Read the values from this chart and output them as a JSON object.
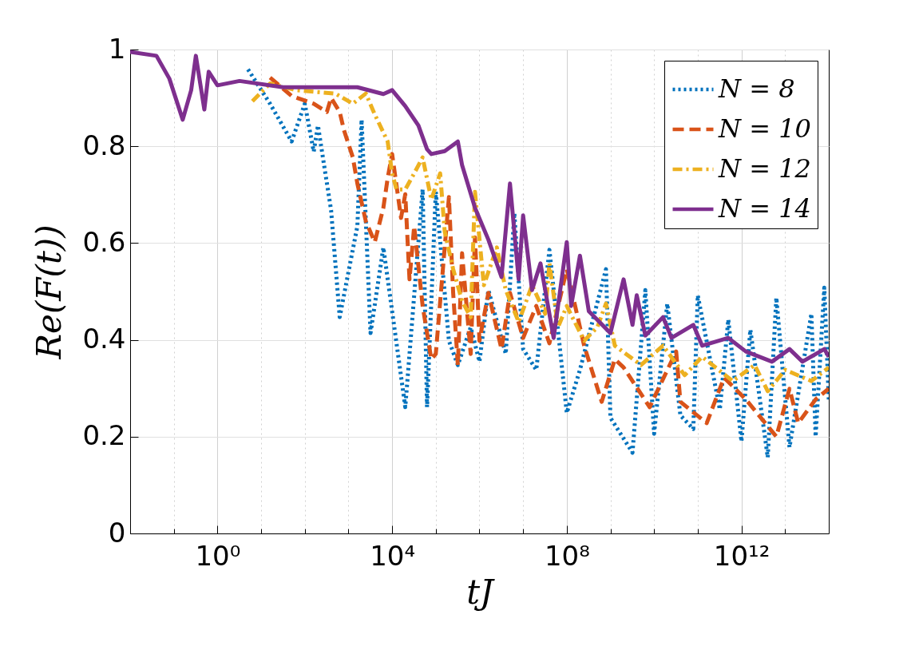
{
  "chart_data": {
    "type": "line",
    "xlabel": "tJ",
    "ylabel": "Re(F(t))",
    "log": "x",
    "grid": true,
    "legend": "top right",
    "xlim": [
      0.01,
      100000000000000.0
    ],
    "ylim": [
      0,
      1
    ],
    "xticks": [
      {
        "value": 0.01,
        "label": null
      },
      {
        "value": 0.1,
        "label": null
      },
      {
        "value": 1,
        "label": "10⁰"
      },
      {
        "value": 10,
        "label": null
      },
      {
        "value": 100,
        "label": null
      },
      {
        "value": 1000,
        "label": null
      },
      {
        "value": 10000,
        "label": "10⁴"
      },
      {
        "value": 100000.0,
        "label": null
      },
      {
        "value": 1000000.0,
        "label": null
      },
      {
        "value": 10000000.0,
        "label": null
      },
      {
        "value": 100000000.0,
        "label": "10⁸"
      },
      {
        "value": 1000000000.0,
        "label": null
      },
      {
        "value": 10000000000.0,
        "label": null
      },
      {
        "value": 100000000000.0,
        "label": null
      },
      {
        "value": 1000000000000.0,
        "label": "10¹²"
      },
      {
        "value": 10000000000000.0,
        "label": null
      }
    ],
    "yticks": [
      0,
      0.2,
      0.4,
      0.6,
      0.8,
      1
    ],
    "series": [
      {
        "name": "N = 8",
        "color": "#0072bd",
        "line_style": "dotted",
        "x": [
          5,
          16,
          50,
          100,
          160,
          200,
          400,
          630,
          1600,
          2000,
          3200,
          6300,
          20000,
          50000,
          63000,
          100000.0,
          200000.0,
          320000.0,
          630000.0,
          1000000.0,
          1600000.0,
          4000000.0,
          6300000.0,
          10000000.0,
          20000000.0,
          40000000.0,
          100000000.0,
          200000000.0,
          790000000.0,
          1000000000.0,
          3200000000.0,
          6300000000.0,
          10000000000.0,
          20000000000.0,
          40000000000.0,
          79000000000.0,
          100000000000.0,
          320000000000.0,
          500000000000.0,
          1000000000000.0,
          1600000000000.0,
          4000000000000.0,
          6300000000000.0,
          12600000000000.0,
          40000000000000.0,
          50000000000000.0,
          79000000000000.0,
          100000000000000.0
        ],
        "values": [
          0.959,
          0.888,
          0.81,
          0.888,
          0.789,
          0.843,
          0.668,
          0.447,
          0.635,
          0.855,
          0.414,
          0.591,
          0.261,
          0.711,
          0.261,
          0.706,
          0.398,
          0.348,
          0.426,
          0.355,
          0.503,
          0.371,
          0.662,
          0.381,
          0.338,
          0.586,
          0.249,
          0.338,
          0.546,
          0.239,
          0.167,
          0.503,
          0.206,
          0.475,
          0.244,
          0.216,
          0.492,
          0.256,
          0.442,
          0.19,
          0.421,
          0.157,
          0.487,
          0.178,
          0.454,
          0.2,
          0.508,
          0.277
        ]
      },
      {
        "name": "N = 10",
        "color": "#d95319",
        "line_style": "dashed",
        "x": [
          16,
          50,
          160,
          320,
          400,
          630,
          790,
          1260,
          1600,
          2500,
          4000,
          6300,
          7900,
          10000,
          16000,
          20000,
          25000,
          32000,
          50000,
          79000,
          100000.0,
          200000.0,
          250000.0,
          320000.0,
          400000.0,
          630000.0,
          790000.0,
          1000000.0,
          1600000.0,
          3200000.0,
          5000000.0,
          10000000.0,
          20000000.0,
          40000000.0,
          100000000.0,
          250000000.0,
          630000000.0,
          1260000000.0,
          2000000000.0,
          7900000000.0,
          32000000000.0,
          40000000000.0,
          160000000000.0,
          400000000000.0,
          1260000000000.0,
          6300000000000.0,
          12600000000000.0,
          20000000000000.0,
          50000000000000.0,
          100000000000000.0
        ],
        "values": [
          0.942,
          0.904,
          0.888,
          0.871,
          0.9,
          0.871,
          0.833,
          0.777,
          0.723,
          0.645,
          0.602,
          0.673,
          0.734,
          0.784,
          0.652,
          0.701,
          0.525,
          0.635,
          0.47,
          0.36,
          0.371,
          0.695,
          0.497,
          0.348,
          0.579,
          0.371,
          0.612,
          0.398,
          0.497,
          0.381,
          0.497,
          0.404,
          0.47,
          0.393,
          0.546,
          0.388,
          0.272,
          0.36,
          0.343,
          0.261,
          0.376,
          0.272,
          0.228,
          0.322,
          0.277,
          0.2,
          0.299,
          0.228,
          0.277,
          0.299
        ]
      },
      {
        "name": "N = 12",
        "color": "#edb120",
        "line_style": "dashdot",
        "x": [
          6.3,
          16,
          63,
          500,
          1260,
          2500,
          4000,
          7900,
          10000,
          12600,
          20000,
          32000,
          50000,
          79000,
          126000.0,
          160000.0,
          250000.0,
          400000.0,
          630000.0,
          790000.0,
          1260000.0,
          2500000.0,
          4000000.0,
          7900000.0,
          16000000.0,
          32000000.0,
          40000000.0,
          63000000.0,
          100000000.0,
          250000000.0,
          500000000.0,
          790000000.0,
          1260000000.0,
          5000000000.0,
          16000000000.0,
          50000000000.0,
          126000000000.0,
          630000000000.0,
          2000000000000.0,
          4000000000000.0,
          10000000000000.0,
          40000000000000.0,
          100000000000000.0
        ],
        "values": [
          0.893,
          0.93,
          0.916,
          0.909,
          0.888,
          0.909,
          0.866,
          0.81,
          0.744,
          0.711,
          0.711,
          0.744,
          0.777,
          0.69,
          0.744,
          0.624,
          0.546,
          0.48,
          0.447,
          0.706,
          0.513,
          0.591,
          0.503,
          0.437,
          0.513,
          0.454,
          0.558,
          0.426,
          0.47,
          0.398,
          0.426,
          0.475,
          0.388,
          0.348,
          0.388,
          0.327,
          0.365,
          0.315,
          0.348,
          0.294,
          0.338,
          0.315,
          0.343
        ]
      },
      {
        "name": "N = 14",
        "color": "#7e2f8e",
        "line_style": "solid",
        "x": [
          0.01,
          0.04,
          0.079,
          0.16,
          0.25,
          0.32,
          0.5,
          0.63,
          1,
          3.2,
          32,
          1600,
          6300,
          10000,
          20000,
          40000,
          63000,
          79000,
          160000.0,
          320000.0,
          400000.0,
          790000.0,
          1600000.0,
          3200000.0,
          5000000.0,
          7900000.0,
          10000000.0,
          16000000.0,
          25000000.0,
          50000000.0,
          100000000.0,
          126000000.0,
          200000000.0,
          320000000.0,
          1000000000.0,
          2000000000.0,
          3200000000.0,
          4000000000.0,
          6300000000.0,
          16000000000.0,
          25000000000.0,
          79000000000.0,
          126000000000.0,
          500000000000.0,
          1260000000000.0,
          5000000000000.0,
          12600000000000.0,
          25000000000000.0,
          79000000000000.0,
          100000000000000.0
        ],
        "values": [
          0.995,
          0.987,
          0.94,
          0.855,
          0.916,
          0.987,
          0.876,
          0.954,
          0.926,
          0.935,
          0.922,
          0.922,
          0.908,
          0.916,
          0.883,
          0.843,
          0.794,
          0.784,
          0.79,
          0.81,
          0.761,
          0.673,
          0.607,
          0.53,
          0.723,
          0.525,
          0.657,
          0.503,
          0.558,
          0.404,
          0.602,
          0.47,
          0.574,
          0.459,
          0.414,
          0.525,
          0.431,
          0.492,
          0.409,
          0.447,
          0.404,
          0.431,
          0.388,
          0.404,
          0.376,
          0.355,
          0.381,
          0.355,
          0.381,
          0.365
        ]
      }
    ]
  }
}
